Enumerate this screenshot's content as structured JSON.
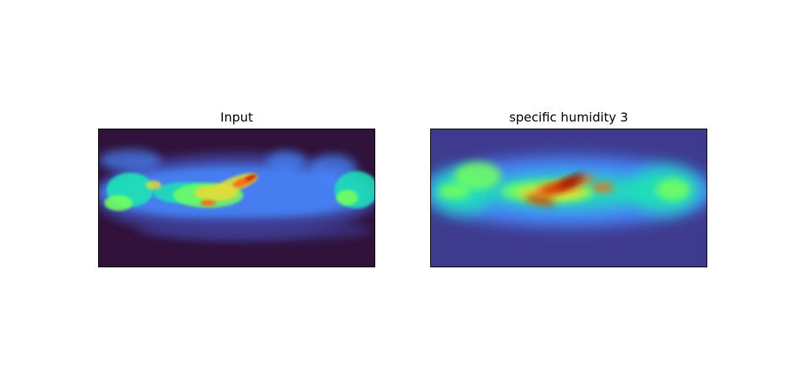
{
  "chart_data": [
    {
      "type": "heatmap",
      "title": "Input",
      "xlabel": "",
      "ylabel": "",
      "axis_ticks": false,
      "colormap": "turbo",
      "grid": false,
      "legend": "none"
    },
    {
      "type": "heatmap",
      "title": "specific humidity 3",
      "xlabel": "",
      "ylabel": "",
      "axis_ticks": false,
      "colormap": "turbo",
      "grid": false,
      "legend": "none"
    }
  ],
  "colors": {
    "background_low": "#30123b",
    "band_low": "#3e3b8f",
    "mid_blue": "#4686fb",
    "cyan": "#1ae4b6",
    "green": "#72fe5e",
    "yellow": "#e1dd37",
    "orange": "#f66b19",
    "red": "#ca2a04",
    "dark_red": "#7a0403"
  }
}
